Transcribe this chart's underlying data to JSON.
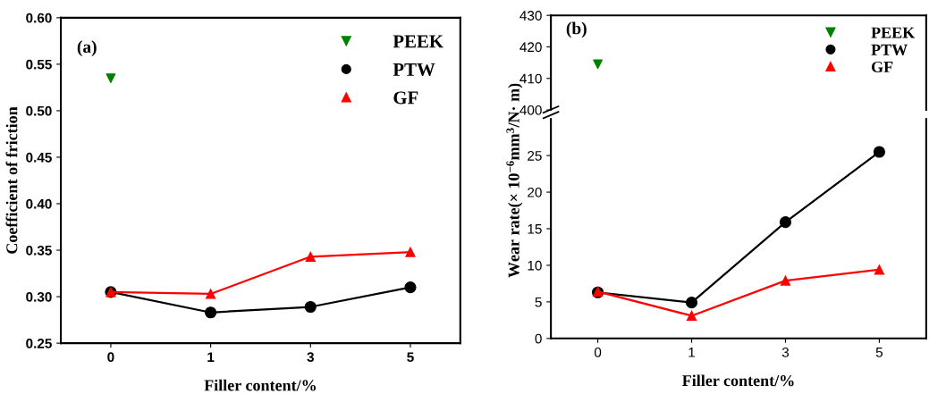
{
  "chart_data": [
    {
      "type": "line",
      "categories": [
        "0",
        "1",
        "3",
        "5"
      ],
      "xlabel": "Filler content/%",
      "ylabel": "Coefficient of friction",
      "annotations": [
        "(a)"
      ],
      "ylim": [
        0.25,
        0.6
      ],
      "yticks": [
        {
          "value": 0.25,
          "label": "0.25"
        },
        {
          "value": 0.3,
          "label": "0.30"
        },
        {
          "value": 0.35,
          "label": "0.35"
        },
        {
          "value": 0.4,
          "label": "0.40"
        },
        {
          "value": 0.45,
          "label": "0.45"
        },
        {
          "value": 0.5,
          "label": "0.50"
        },
        {
          "value": 0.55,
          "label": "0.55"
        },
        {
          "value": 0.6,
          "label": "0.60"
        }
      ],
      "grid": false,
      "legend": "top right",
      "series": [
        {
          "name": "PEEK",
          "type": "scatter",
          "color": "#008000",
          "marker": "triangle_down",
          "values": [
            0.535,
            null,
            null,
            null
          ]
        },
        {
          "name": "PTW",
          "color": "#000000",
          "marker": "circle",
          "values": [
            0.305,
            0.283,
            0.289,
            0.31
          ]
        },
        {
          "name": "GF",
          "color": "#ff0000",
          "marker": "triangle",
          "values": [
            0.305,
            0.303,
            0.343,
            0.348
          ]
        }
      ]
    },
    {
      "type": "line",
      "categories": [
        "0",
        "1",
        "3",
        "5"
      ],
      "annotations": [
        "(b)"
      ],
      "ylim": [
        400,
        430
      ],
      "yticks": [
        400,
        410,
        420,
        430
      ],
      "tick_labels": "y",
      "grid": false,
      "legend": "top right",
      "series": [
        {
          "name": "PEEK",
          "type": "scatter",
          "color": "#008000",
          "marker": "triangle_down",
          "values": [
            414.5,
            null,
            null,
            null
          ]
        },
        {
          "name": "PTW",
          "color": "#000000",
          "marker": "circle",
          "values": [
            null,
            null,
            null,
            null
          ]
        },
        {
          "name": "GF",
          "color": "#ff0000",
          "marker": "triangle",
          "values": [
            null,
            null,
            null,
            null
          ]
        }
      ]
    },
    {
      "type": "line",
      "categories": [
        "0",
        "1",
        "3",
        "5"
      ],
      "xlabel": "Filler content/%",
      "ylabel": "Wear rate(× 10$^{−6}$mm$^{3}$/N· m)",
      "ylim": [
        0,
        30
      ],
      "yticks": [
        0,
        5,
        10,
        15,
        20,
        25
      ],
      "grid": false,
      "legend": false,
      "series": [
        {
          "color": "#000000",
          "marker": "circle",
          "values": [
            6.3,
            4.9,
            15.9,
            25.5
          ]
        },
        {
          "color": "#ff0000",
          "marker": "triangle",
          "values": [
            6.4,
            3.1,
            7.9,
            9.4
          ]
        }
      ]
    }
  ]
}
